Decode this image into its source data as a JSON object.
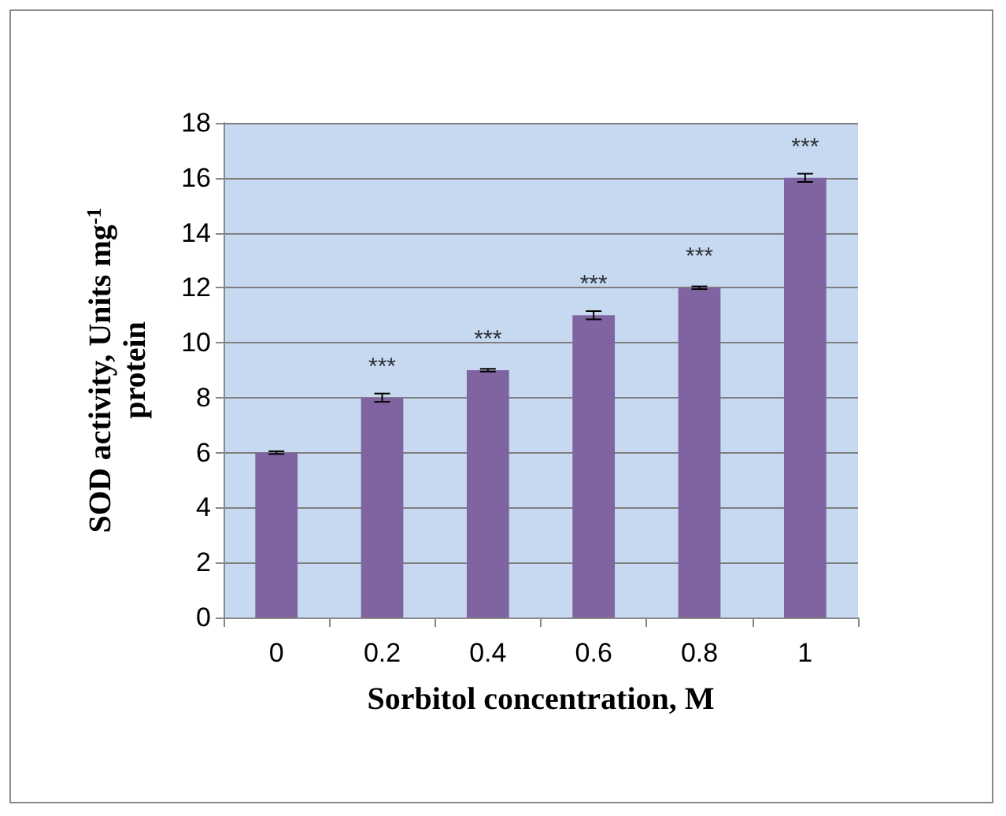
{
  "chart_data": {
    "type": "bar",
    "xlabel": "Sorbitol concentration, M",
    "ylabel": "SOD activity, Units mg$^{-1}$ protein",
    "categories": [
      "0",
      "0.2",
      "0.4",
      "0.6",
      "0.8",
      "1"
    ],
    "values": [
      6,
      8,
      9,
      11,
      12,
      16
    ],
    "color": "#8064a2",
    "errors": [
      0.05,
      0.15,
      0.05,
      0.15,
      0.05,
      0.15
    ],
    "ylim": [
      0,
      18
    ],
    "yticks": [
      0,
      2,
      4,
      6,
      8,
      10,
      12,
      14,
      16,
      18
    ],
    "grid": "y",
    "annotations": [
      {
        "text": "***",
        "x": "0.2",
        "y": 8
      },
      {
        "text": "***",
        "x": "0.4",
        "y": 9
      },
      {
        "text": "***",
        "x": "0.6",
        "y": 11
      },
      {
        "text": "***",
        "x": "0.8",
        "y": 12
      },
      {
        "text": "***",
        "x": "1",
        "y": 16
      }
    ]
  }
}
